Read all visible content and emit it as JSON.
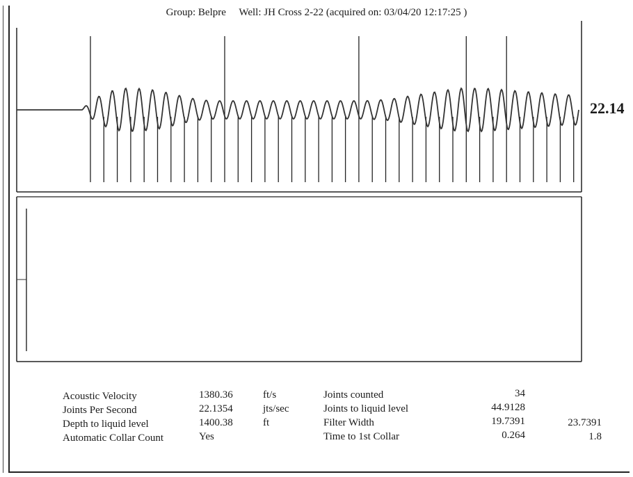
{
  "header": {
    "group_label": "Group: Belpre",
    "well_label": "Well: JH Cross 2-22 (acquired on: 03/04/20 12:17:25 )"
  },
  "signal_value": "22.14",
  "stats": {
    "left": [
      {
        "label": "Acoustic Velocity",
        "value": "1380.36",
        "unit": "ft/s"
      },
      {
        "label": "Joints Per Second",
        "value": "22.1354",
        "unit": "jts/sec"
      },
      {
        "label": "Depth to liquid level",
        "value": "1400.38",
        "unit": "ft"
      },
      {
        "label": "Automatic Collar Count",
        "value": "Yes",
        "unit": ""
      }
    ],
    "right": [
      {
        "label": "Joints counted",
        "value": "34",
        "value2": ""
      },
      {
        "label": "Joints to liquid level",
        "value": "44.9128",
        "value2": ""
      },
      {
        "label": "Filter Width",
        "value": "19.7391",
        "value2": "23.7391"
      },
      {
        "label": "Time to 1st Collar",
        "value": "0.264",
        "value2": "1.8"
      }
    ]
  },
  "chart_data": {
    "type": "line",
    "title": "",
    "xlabel": "",
    "ylabel": "",
    "top_panel": {
      "description_type": "filtered collar signal",
      "oscillation_cycles": 37,
      "collar_markers": 37,
      "tall_markers": 5,
      "amplitude_profile": [
        0.05,
        0.55,
        0.85,
        1.0,
        1.0,
        0.95,
        0.85,
        0.7,
        0.55,
        0.45,
        0.42,
        0.42,
        0.42,
        0.42,
        0.42,
        0.42,
        0.42,
        0.42,
        0.42,
        0.42,
        0.42,
        0.42,
        0.45,
        0.5,
        0.6,
        0.7,
        0.8,
        0.9,
        1.0,
        1.0,
        1.0,
        0.95,
        0.9,
        0.85,
        0.8,
        0.75,
        0.7
      ]
    },
    "bottom_panel": {
      "description_type": "raw trace",
      "has_initial_spike": true
    }
  }
}
